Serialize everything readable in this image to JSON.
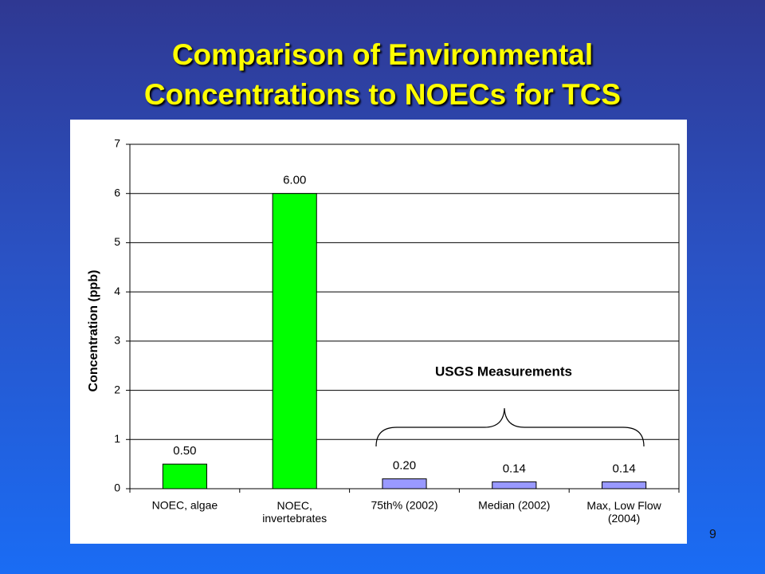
{
  "slide": {
    "page_number": "9"
  },
  "chart_data": {
    "type": "bar",
    "title": "Comparison of Environmental Concentrations to NOECs for TCS",
    "y_label": "Concentration (ppb)",
    "annotation": "USGS Measurements",
    "categories": [
      "NOEC, algae",
      "NOEC,\ninvertebrates",
      "75th% (2002)",
      "Median (2002)",
      "Max, Low Flow\n(2004)"
    ],
    "values": [
      0.5,
      6,
      0.2,
      0.14,
      0.14
    ],
    "value_labels": [
      "0.50",
      "6.00",
      "0.20",
      "0.14",
      "0.14"
    ],
    "colors": [
      "#00ff00",
      "#00ff00",
      "#9999ff",
      "#9999ff",
      "#9999ff"
    ],
    "ylim": [
      0,
      7
    ],
    "yticks": [
      0,
      1,
      2,
      3,
      4,
      5,
      6,
      7
    ],
    "grid": true
  }
}
